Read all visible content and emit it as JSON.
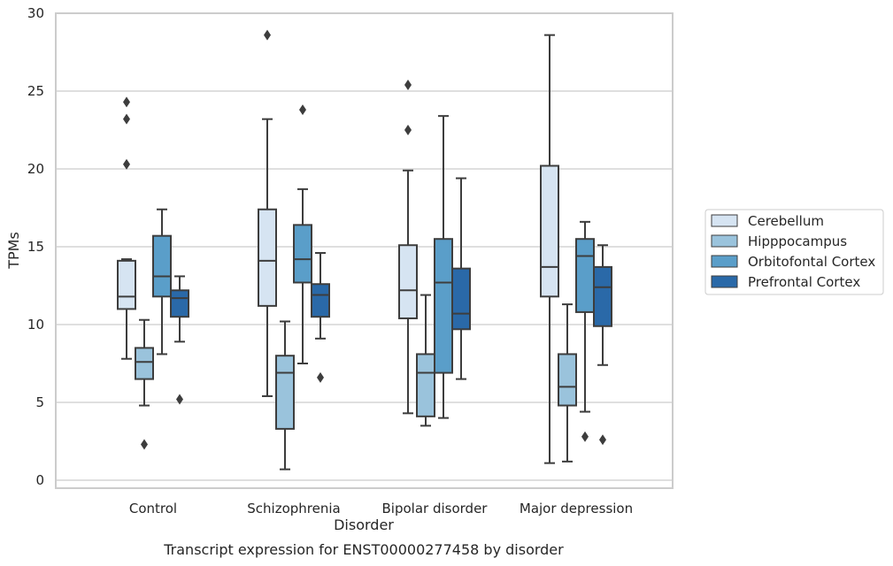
{
  "chart_data": {
    "type": "box",
    "title": "Transcript expression for ENST00000277458 by disorder",
    "xlabel": "Disorder",
    "ylabel": "TPMs",
    "ylim": [
      -0.5,
      30
    ],
    "yticks": [
      0,
      5,
      10,
      15,
      20,
      25,
      30
    ],
    "grid": "horizontal",
    "legend_position": "right",
    "categories": [
      "Control",
      "Schizophrenia",
      "Bipolar disorder",
      "Major depression"
    ],
    "series": [
      {
        "name": "Cerebellum",
        "color": "#d6e4f2",
        "boxes": [
          {
            "whisker_low": 7.8,
            "q1": 11.0,
            "median": 11.8,
            "q3": 14.1,
            "whisker_high": 14.2,
            "outliers": [
              24.3,
              23.2,
              20.3
            ]
          },
          {
            "whisker_low": 5.4,
            "q1": 11.2,
            "median": 14.1,
            "q3": 17.4,
            "whisker_high": 23.2,
            "outliers": [
              28.6
            ]
          },
          {
            "whisker_low": 4.3,
            "q1": 10.4,
            "median": 12.2,
            "q3": 15.1,
            "whisker_high": 19.9,
            "outliers": [
              25.4,
              22.5
            ]
          },
          {
            "whisker_low": 1.1,
            "q1": 11.8,
            "median": 13.7,
            "q3": 20.2,
            "whisker_high": 28.6,
            "outliers": []
          }
        ]
      },
      {
        "name": "Hipppocampus",
        "color": "#9ac3dc",
        "boxes": [
          {
            "whisker_low": 4.8,
            "q1": 6.5,
            "median": 7.6,
            "q3": 8.5,
            "whisker_high": 10.3,
            "outliers": [
              2.3
            ]
          },
          {
            "whisker_low": 0.7,
            "q1": 3.3,
            "median": 6.9,
            "q3": 8.0,
            "whisker_high": 10.2,
            "outliers": []
          },
          {
            "whisker_low": 3.5,
            "q1": 4.1,
            "median": 6.9,
            "q3": 8.1,
            "whisker_high": 11.9,
            "outliers": []
          },
          {
            "whisker_low": 1.2,
            "q1": 4.8,
            "median": 6.0,
            "q3": 8.1,
            "whisker_high": 11.3,
            "outliers": []
          }
        ]
      },
      {
        "name": "Orbitofontal Cortex",
        "color": "#5a9ec9",
        "boxes": [
          {
            "whisker_low": 8.1,
            "q1": 11.8,
            "median": 13.1,
            "q3": 15.7,
            "whisker_high": 17.4,
            "outliers": []
          },
          {
            "whisker_low": 7.5,
            "q1": 12.7,
            "median": 14.2,
            "q3": 16.4,
            "whisker_high": 18.7,
            "outliers": [
              23.8
            ]
          },
          {
            "whisker_low": 4.0,
            "q1": 6.9,
            "median": 12.7,
            "q3": 15.5,
            "whisker_high": 23.4,
            "outliers": []
          },
          {
            "whisker_low": 4.4,
            "q1": 10.8,
            "median": 14.4,
            "q3": 15.5,
            "whisker_high": 16.6,
            "outliers": [
              2.8
            ]
          }
        ]
      },
      {
        "name": "Prefrontal Cortex",
        "color": "#2a69a8",
        "boxes": [
          {
            "whisker_low": 8.9,
            "q1": 10.5,
            "median": 11.7,
            "q3": 12.2,
            "whisker_high": 13.1,
            "outliers": [
              5.2
            ]
          },
          {
            "whisker_low": 9.1,
            "q1": 10.5,
            "median": 11.9,
            "q3": 12.6,
            "whisker_high": 14.6,
            "outliers": [
              6.6
            ]
          },
          {
            "whisker_low": 6.5,
            "q1": 9.7,
            "median": 10.7,
            "q3": 13.6,
            "whisker_high": 19.4,
            "outliers": []
          },
          {
            "whisker_low": 7.4,
            "q1": 9.9,
            "median": 12.4,
            "q3": 13.7,
            "whisker_high": 15.1,
            "outliers": [
              2.6
            ]
          }
        ]
      }
    ]
  }
}
